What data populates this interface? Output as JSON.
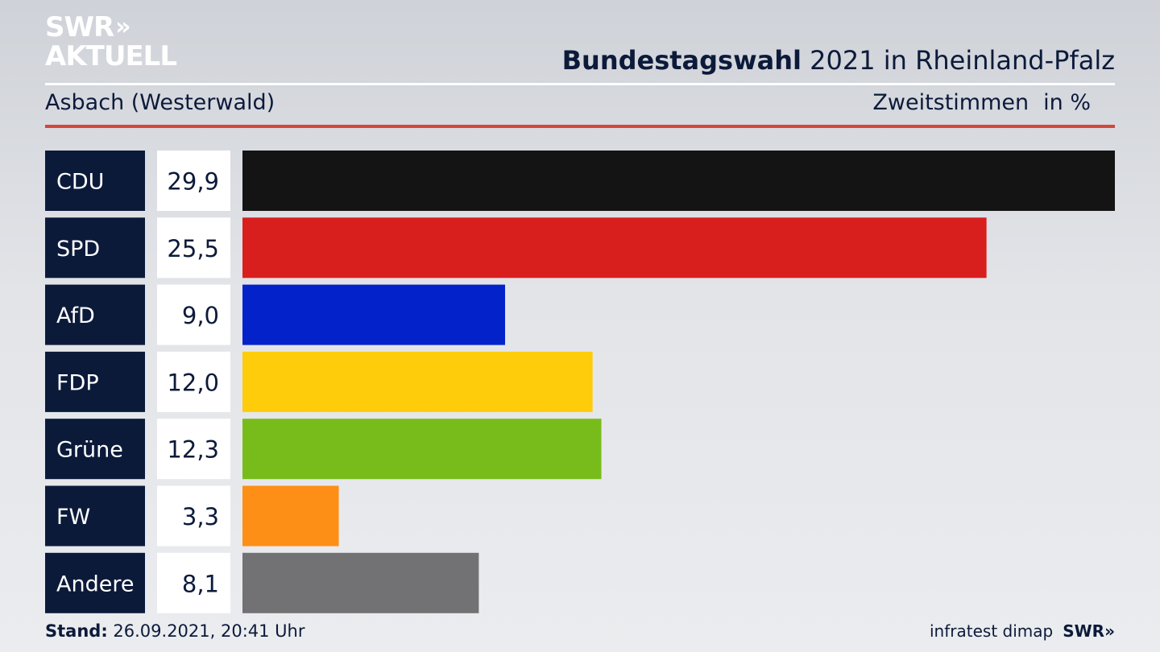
{
  "logo": {
    "line1": "SWR",
    "line1_mark": "»",
    "line2": "AKTUELL"
  },
  "header": {
    "title_bold": "Bundestagswahl",
    "title_rest": " 2021 in Rheinland-Pfalz",
    "subtitle": "Asbach (Westerwald)",
    "metric": "Zweitstimmen",
    "unit": "in %"
  },
  "chart_data": {
    "type": "bar",
    "orientation": "horizontal",
    "categories": [
      "CDU",
      "SPD",
      "AfD",
      "FDP",
      "Grüne",
      "FW",
      "Andere"
    ],
    "values": [
      29.9,
      25.5,
      9.0,
      12.0,
      12.3,
      3.3,
      8.1
    ],
    "value_labels": [
      "29,9",
      "25,5",
      "9,0",
      "12,0",
      "12,3",
      "3,3",
      "8,1"
    ],
    "colors": [
      "#141414",
      "#d91e1e",
      "#0322c9",
      "#fecc0a",
      "#78bc1b",
      "#fd8e16",
      "#727274"
    ],
    "xlim": [
      0,
      29.9
    ],
    "grid": false,
    "legend": "none"
  },
  "footer": {
    "stand_label": "Stand:",
    "stand_value": " 26.09.2021, 20:41 Uhr",
    "source": "infratest dimap",
    "brand": "SWR",
    "brand_mark": "»"
  }
}
